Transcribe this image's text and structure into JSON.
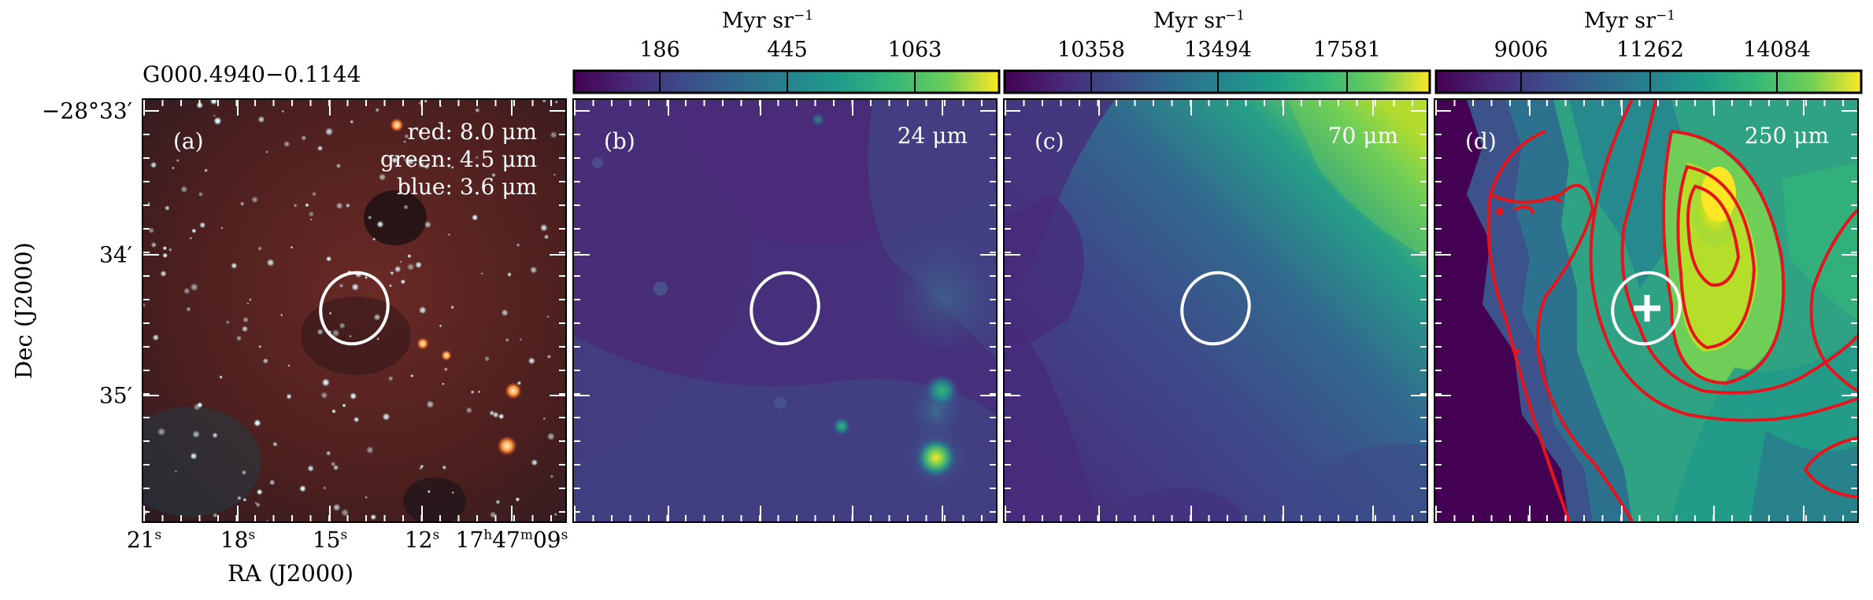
{
  "source_name": "G000.4940−0.1144",
  "colorbar_unit": "Myr sr",
  "colorbar_unit_exp": "−1",
  "colorbars": [
    {
      "panel": "b",
      "ticks": [
        "186",
        "445",
        "1063"
      ]
    },
    {
      "panel": "c",
      "ticks": [
        "10358",
        "13494",
        "17581"
      ]
    },
    {
      "panel": "d",
      "ticks": [
        "9006",
        "11262",
        "14084"
      ]
    }
  ],
  "panels": [
    {
      "id": "a",
      "label": "(a)",
      "legend": [
        "red: 8.0 μm",
        "green: 4.5 μm",
        "blue: 3.6 μm"
      ]
    },
    {
      "id": "b",
      "label": "(b)",
      "band": "24 μm"
    },
    {
      "id": "c",
      "label": "(c)",
      "band": "70 μm"
    },
    {
      "id": "d",
      "label": "(d)",
      "band": "250 μm"
    }
  ],
  "ra_ticks": [
    {
      "main": "21",
      "sup": "s"
    },
    {
      "main": "18",
      "sup": "s"
    },
    {
      "main": "15",
      "sup": "s"
    },
    {
      "main": "12",
      "sup": "s"
    },
    {
      "main": "17",
      "sup": "h",
      "main2": "47",
      "sup2": "m",
      "main3": "09",
      "sup3": "s"
    }
  ],
  "dec_ticks": [
    "−28°33′",
    "34′",
    "35′"
  ],
  "xlabel": "RA (J2000)",
  "ylabel": "Dec (J2000)",
  "colors": {
    "viridis_low": "#440154",
    "viridis_high": "#fde725",
    "contour": "#e8141c",
    "ellipse": "#ffffff"
  },
  "chart_data": {
    "type": "heatmap",
    "panels": [
      "(a) RGB 8.0/4.5/3.6 μm",
      "(b) 24 μm",
      "(c) 70 μm",
      "(d) 250 μm"
    ],
    "colorbar_ticks": {
      "24 μm": [
        186,
        445,
        1063
      ],
      "70 μm": [
        10358,
        13494,
        17581
      ],
      "250 μm": [
        9006,
        11262,
        14084
      ]
    },
    "colorbar_unit": "Myr sr⁻¹",
    "xlabel": "RA (J2000)",
    "ylabel": "Dec (J2000)",
    "x_ticks": [
      "21s",
      "18s",
      "15s",
      "12s",
      "17h47m09s"
    ],
    "y_ticks": [
      "−28°33′",
      "34′",
      "35′"
    ]
  }
}
